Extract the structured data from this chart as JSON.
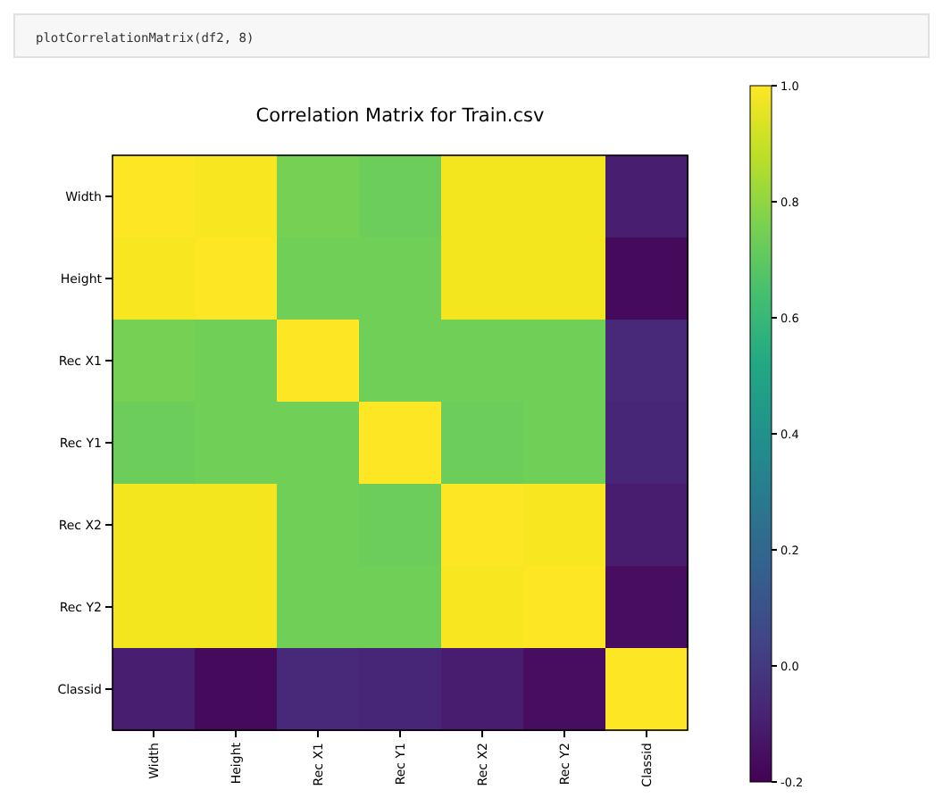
{
  "chart_data": {
    "type": "heatmap",
    "title": "Correlation Matrix for Train.csv",
    "annotations": [
      "plotCorrelationMatrix(df2, 8)"
    ],
    "categories": [
      "Width",
      "Height",
      "Rec X1",
      "Rec Y1",
      "Rec X2",
      "Rec Y2",
      "Classid"
    ],
    "y_categories": [
      "Width",
      "Height",
      "Rec X1",
      "Rec Y1",
      "Rec X2",
      "Rec Y2",
      "Classid"
    ],
    "cells": [
      [
        1,
        0.99,
        0.75,
        0.73,
        0.98,
        0.98,
        -0.1
      ],
      [
        0.99,
        1,
        0.74,
        0.74,
        0.98,
        0.98,
        -0.17
      ],
      [
        0.75,
        0.74,
        1,
        0.74,
        0.74,
        0.74,
        -0.06
      ],
      [
        0.73,
        0.74,
        0.74,
        1,
        0.73,
        0.74,
        -0.07
      ],
      [
        0.98,
        0.98,
        0.74,
        0.73,
        1,
        0.99,
        -0.11
      ],
      [
        0.98,
        0.98,
        0.74,
        0.74,
        0.99,
        1,
        -0.16
      ],
      [
        -0.1,
        -0.17,
        -0.06,
        -0.07,
        -0.11,
        -0.16,
        1
      ]
    ],
    "clim": [
      -0.2,
      1
    ],
    "cticks": [
      {
        "value": -0.2,
        "label": "-0.2"
      },
      {
        "value": 0,
        "label": "0.0"
      },
      {
        "value": 0.2,
        "label": "0.2"
      },
      {
        "value": 0.4,
        "label": "0.4"
      },
      {
        "value": 0.6,
        "label": "0.6"
      },
      {
        "value": 0.8,
        "label": "0.8"
      },
      {
        "value": 1,
        "label": "1.0"
      }
    ]
  }
}
